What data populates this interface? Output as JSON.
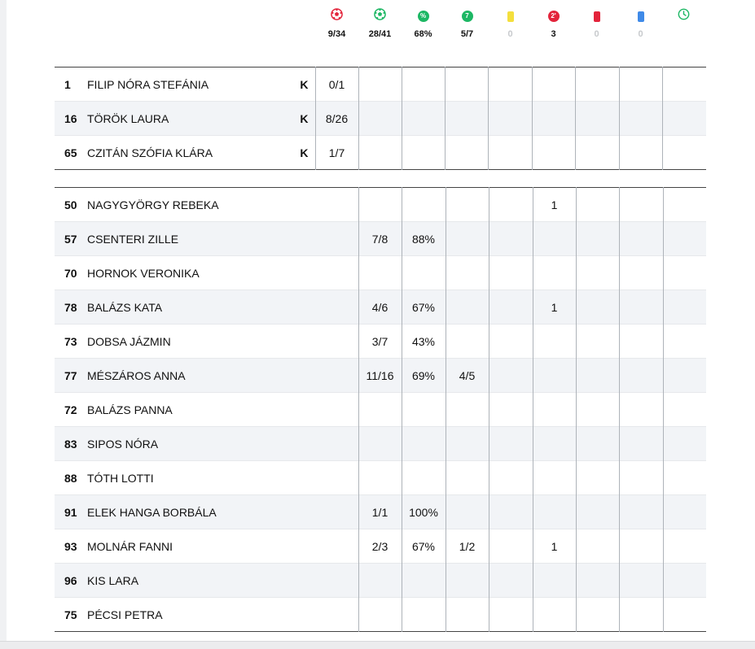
{
  "colors": {
    "red": "#e3243b",
    "green": "#1db764",
    "yellow": "#f4df3d",
    "blue": "#3f8ae8"
  },
  "header": {
    "stats": [
      {
        "icon": "ball-red-icon",
        "value": "9/34"
      },
      {
        "icon": "ball-green-icon",
        "value": "28/41"
      },
      {
        "icon": "percent-icon",
        "value": "68%"
      },
      {
        "icon": "seven-meter-icon",
        "value": "5/7"
      },
      {
        "icon": "yellow-card-icon",
        "value": "0"
      },
      {
        "icon": "two-minute-icon",
        "value": "3"
      },
      {
        "icon": "red-card-icon",
        "value": "0"
      },
      {
        "icon": "blue-card-icon",
        "value": "0"
      },
      {
        "icon": "clock-icon",
        "value": ""
      }
    ],
    "icon_labels": {
      "percent": "%",
      "seven": "7",
      "two_min": "2'"
    }
  },
  "goalkeepers": [
    {
      "num": "1",
      "name": "FILIP NÓRA STEFÁNIA",
      "role": "K",
      "saves": "0/1"
    },
    {
      "num": "16",
      "name": "TÖRÖK LAURA",
      "role": "K",
      "saves": "8/26"
    },
    {
      "num": "65",
      "name": "CZITÁN SZÓFIA KLÁRA",
      "role": "K",
      "saves": "1/7"
    }
  ],
  "players": [
    {
      "num": "50",
      "name": "NAGYGYÖRGY REBEKA",
      "goals": "",
      "pct": "",
      "seven": "",
      "yellow": "",
      "two": "1",
      "red": "",
      "blue": "",
      "time": ""
    },
    {
      "num": "57",
      "name": "CSENTERI ZILLE",
      "goals": "7/8",
      "pct": "88%",
      "seven": "",
      "yellow": "",
      "two": "",
      "red": "",
      "blue": "",
      "time": ""
    },
    {
      "num": "70",
      "name": "HORNOK VERONIKA",
      "goals": "",
      "pct": "",
      "seven": "",
      "yellow": "",
      "two": "",
      "red": "",
      "blue": "",
      "time": ""
    },
    {
      "num": "78",
      "name": "BALÁZS KATA",
      "goals": "4/6",
      "pct": "67%",
      "seven": "",
      "yellow": "",
      "two": "1",
      "red": "",
      "blue": "",
      "time": ""
    },
    {
      "num": "73",
      "name": "DOBSA JÁZMIN",
      "goals": "3/7",
      "pct": "43%",
      "seven": "",
      "yellow": "",
      "two": "",
      "red": "",
      "blue": "",
      "time": ""
    },
    {
      "num": "77",
      "name": "MÉSZÁROS ANNA",
      "goals": "11/16",
      "pct": "69%",
      "seven": "4/5",
      "yellow": "",
      "two": "",
      "red": "",
      "blue": "",
      "time": ""
    },
    {
      "num": "72",
      "name": "BALÁZS PANNA",
      "goals": "",
      "pct": "",
      "seven": "",
      "yellow": "",
      "two": "",
      "red": "",
      "blue": "",
      "time": ""
    },
    {
      "num": "83",
      "name": "SIPOS NÓRA",
      "goals": "",
      "pct": "",
      "seven": "",
      "yellow": "",
      "two": "",
      "red": "",
      "blue": "",
      "time": ""
    },
    {
      "num": "88",
      "name": "TÓTH LOTTI",
      "goals": "",
      "pct": "",
      "seven": "",
      "yellow": "",
      "two": "",
      "red": "",
      "blue": "",
      "time": ""
    },
    {
      "num": "91",
      "name": "ELEK HANGA BORBÁLA",
      "goals": "1/1",
      "pct": "100%",
      "seven": "",
      "yellow": "",
      "two": "",
      "red": "",
      "blue": "",
      "time": ""
    },
    {
      "num": "93",
      "name": "MOLNÁR FANNI",
      "goals": "2/3",
      "pct": "67%",
      "seven": "1/2",
      "yellow": "",
      "two": "1",
      "red": "",
      "blue": "",
      "time": ""
    },
    {
      "num": "96",
      "name": "KIS LARA",
      "goals": "",
      "pct": "",
      "seven": "",
      "yellow": "",
      "two": "",
      "red": "",
      "blue": "",
      "time": ""
    },
    {
      "num": "75",
      "name": "PÉCSI PETRA",
      "goals": "",
      "pct": "",
      "seven": "",
      "yellow": "",
      "two": "",
      "red": "",
      "blue": "",
      "time": ""
    }
  ]
}
